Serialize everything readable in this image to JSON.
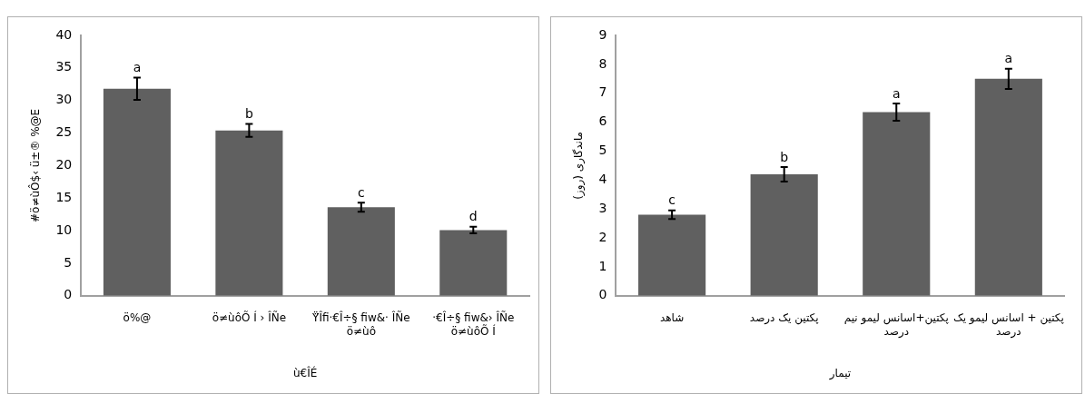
{
  "chart_data": [
    {
      "type": "bar",
      "xlabel": "ù€ÎÉ",
      "ylabel": "#ö≠ùÔ$‹ ü±® %@E",
      "categories": [
        "ö%@",
        "ö≠ùôÕ Í › ÎÑe",
        "Ÿ̈Îfi·€Î÷§ fiw&· ÎÑe ö≠ùô",
        "·€Î÷§ fiw&› ÎÑe ö≠ùôÕ Í"
      ],
      "series": [
        {
          "color": "#606060",
          "values": [
            31.8,
            25.4,
            13.6,
            10.1
          ],
          "errors": [
            1.7,
            1.0,
            0.7,
            0.5
          ]
        }
      ],
      "annotations": [
        {
          "text": "a",
          "x": "ö%@",
          "y": 33.5
        },
        {
          "text": "b",
          "x": "ö≠ùôÕ Í › ÎÑe",
          "y": 26.4
        },
        {
          "text": "c",
          "x": "Ÿ̈Îfi·€Î÷§ fiw&· ÎÑe ö≠ùô",
          "y": 14.3
        },
        {
          "text": "d",
          "x": "·€Î÷§ fiw&› ÎÑe ö≠ùôÕ Í",
          "y": 10.6
        }
      ],
      "ylim": [
        0,
        40
      ],
      "yticks": [
        0,
        5,
        10,
        15,
        20,
        25,
        30,
        35,
        40
      ],
      "grid": false,
      "legend": false
    },
    {
      "type": "bar",
      "xlabel": "تیمار",
      "ylabel": "ماندگاری (روز)",
      "categories": [
        "شاهد",
        "پکتین یک درصد",
        "پکتین+اسانس لیمو نیم درصد",
        "پکتین + اسانس لیمو یک درصد"
      ],
      "series": [
        {
          "color": "#606060",
          "values": [
            2.8,
            4.2,
            6.35,
            7.5
          ],
          "errors": [
            0.15,
            0.25,
            0.3,
            0.35
          ]
        }
      ],
      "annotations": [
        {
          "text": "c",
          "x": "شاهد",
          "y": 2.95
        },
        {
          "text": "b",
          "x": "پکتین یک درصد",
          "y": 4.45
        },
        {
          "text": "a",
          "x": "پکتین+اسانس لیمو نیم درصد",
          "y": 6.65
        },
        {
          "text": "a",
          "x": "پکتین + اسانس لیمو یک درصد",
          "y": 7.85
        }
      ],
      "ylim": [
        0,
        9
      ],
      "yticks": [
        0,
        1,
        2,
        3,
        4,
        5,
        6,
        7,
        8,
        9
      ],
      "grid": false,
      "legend": false
    }
  ]
}
